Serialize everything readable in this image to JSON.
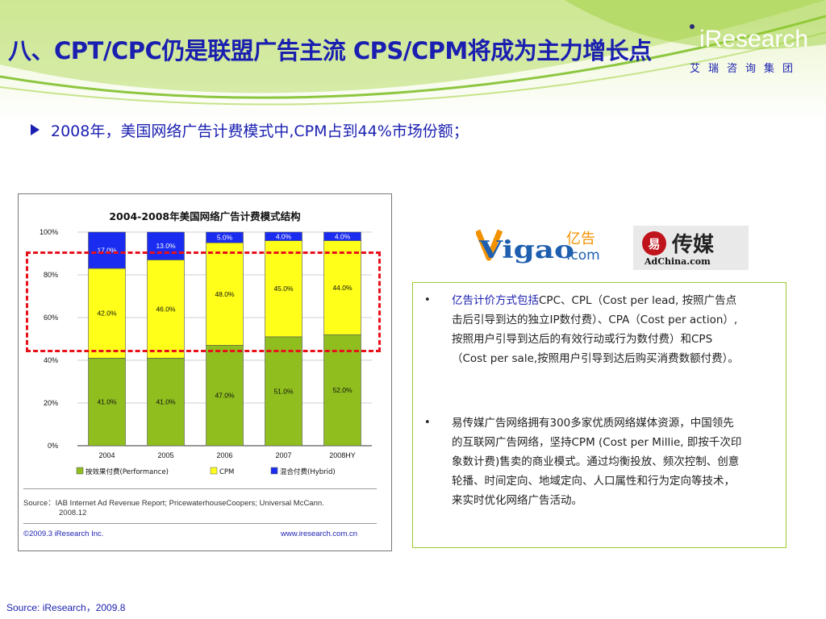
{
  "slide": {
    "title": "八、CPT/CPC仍是联盟广告主流 CPS/CPM将成为主力增长点",
    "logo_word": "iResearch",
    "logo_cn": "艾瑞咨询集团",
    "bullet": "2008年，美国网络广告计费模式中,CPM占到44%市场份额；",
    "footer_source": "Source: iResearch，2009.8"
  },
  "chart_data": {
    "type": "bar",
    "stacked": true,
    "title": "2004-2008年美国网络广告计费模式结构",
    "categories": [
      "2004",
      "2005",
      "2006",
      "2007",
      "2008HY"
    ],
    "series": [
      {
        "name": "按效果付费(Performance)",
        "color": "#8fbe1e",
        "values": [
          41.0,
          41.0,
          47.0,
          51.0,
          52.0
        ],
        "labels": [
          "41.0%",
          "41.0%",
          "47.0%",
          "51.0%",
          "52.0%"
        ]
      },
      {
        "name": "CPM",
        "color": "#ffff1a",
        "values": [
          42.0,
          46.0,
          48.0,
          45.0,
          44.0
        ],
        "labels": [
          "42.0%",
          "46.0%",
          "48.0%",
          "45.0%",
          "44.0%"
        ]
      },
      {
        "name": "混合付费(Hybrid)",
        "color": "#1a2cf0",
        "values": [
          17.0,
          13.0,
          5.0,
          4.0,
          4.0
        ],
        "labels": [
          "17.0%",
          "13.0%",
          "5.0%",
          "4.0%",
          "4.0%"
        ]
      }
    ],
    "ylim": [
      0,
      100
    ],
    "yticks": [
      "0%",
      "20%",
      "40%",
      "60%",
      "80%",
      "100%"
    ],
    "grid": true,
    "legend": "bottom",
    "source": "Source：IAB Internet Ad Revenue Report; PricewaterhouseCoopers; Universal McCann.",
    "source_date": "2008.12",
    "copyright": "©2009.3 iResearch Inc.",
    "website": "www.iresearch.com.cn"
  },
  "logos": {
    "vigao_cn": "亿告",
    "vigao_word": "Vigao",
    "vigao_com": ".com",
    "adchina_cn": "传媒",
    "adchina_word": "AdChina.com"
  },
  "info": {
    "item1": {
      "lead": "亿告计价方式包括",
      "text": "CPC、CPL（Cost per lead, 按照广告点击后引导到达的独立IP数付费）、CPA（Cost per action）, 按照用户引导到达后的有效行动或行为数付费）和CPS（Cost per sale,按照用户引导到达后购买消费数额付费）。"
    },
    "item2": {
      "text": "易传媒广告网络拥有300多家优质网络媒体资源，中国领先的互联网广告网络，坚持CPM (Cost per Millie, 即按千次印象数计费)售卖的商业模式。通过均衡投放、频次控制、创意轮播、时间定向、地域定向、人口属性和行为定向等技术，来实时优化网络广告活动。"
    },
    "bullet_symbol": "•"
  },
  "colors": {
    "title_blue": "#1a1fb0",
    "header_green": "#8dc63f",
    "dash_red": "#e8101a"
  }
}
